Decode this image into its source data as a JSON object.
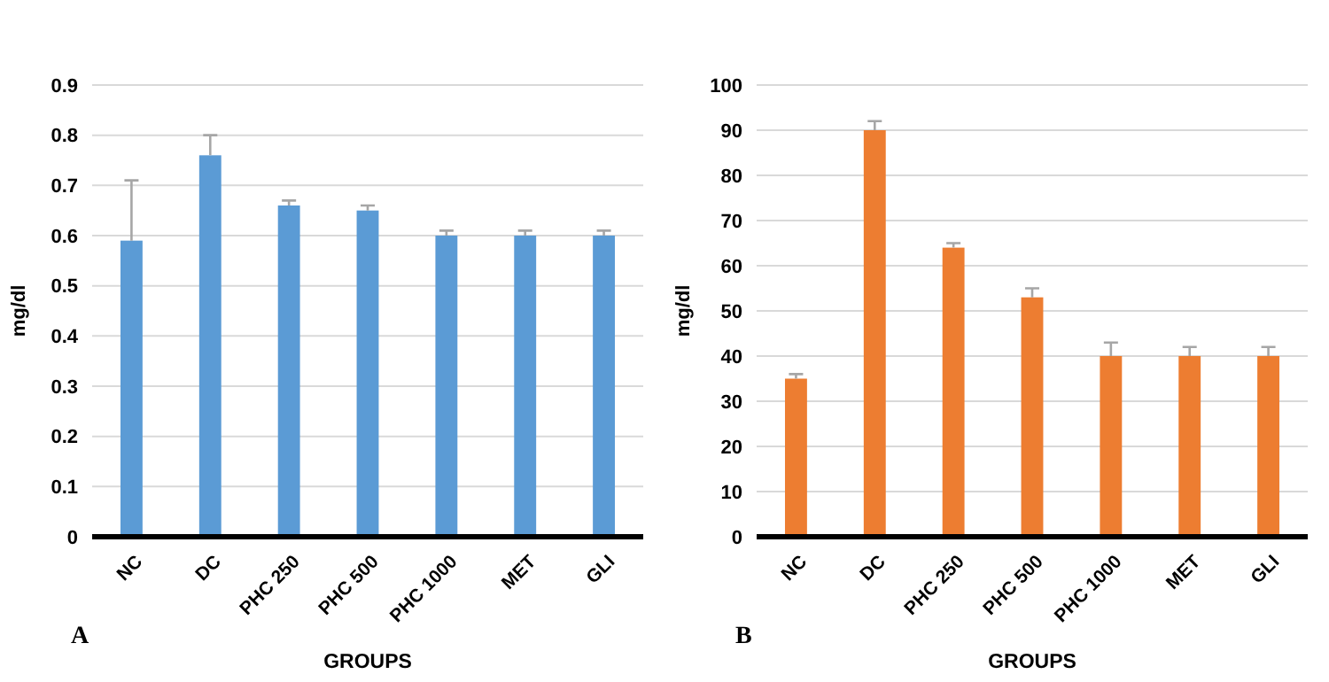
{
  "chart_data": [
    {
      "type": "bar",
      "xlabel": "GROUPS",
      "ylabel": "mg/dl",
      "annotations": [
        "A"
      ],
      "categories": [
        "NC",
        "DC",
        "PHC 250",
        "PHC 500",
        "PHC 1000",
        "MET",
        "GLI"
      ],
      "series": [
        {
          "color": "#5b9bd5",
          "values": [
            0.59,
            0.76,
            0.66,
            0.65,
            0.6,
            0.6,
            0.6
          ],
          "errors": [
            [
              0.59,
              0.71
            ],
            [
              0.76,
              0.8
            ],
            [
              0.66,
              0.67
            ],
            [
              0.65,
              0.66
            ],
            [
              0.6,
              0.61
            ],
            [
              0.6,
              0.61
            ],
            [
              0.6,
              0.61
            ]
          ]
        }
      ],
      "ylim": [
        0,
        0.9
      ],
      "yticks": [
        {
          "value": 0,
          "label": "0"
        },
        0.1,
        0.2,
        0.3,
        0.4,
        0.5,
        0.6,
        0.7,
        0.8,
        0.9
      ],
      "grid": "y"
    },
    {
      "type": "bar",
      "xlabel": "GROUPS",
      "ylabel": "mg/dl",
      "annotations": [
        "B"
      ],
      "categories": [
        "NC",
        "DC",
        "PHC 250",
        "PHC 500",
        "PHC 1000",
        "MET",
        "GLI"
      ],
      "series": [
        {
          "color": "#ed7d31",
          "values": [
            35,
            90,
            64,
            53,
            40,
            40,
            40
          ],
          "errors": [
            [
              35,
              36
            ],
            [
              90,
              92
            ],
            [
              64,
              65
            ],
            [
              53,
              55
            ],
            [
              40,
              43
            ],
            [
              40,
              42
            ],
            [
              40,
              42
            ]
          ]
        }
      ],
      "ylim": [
        0,
        100
      ],
      "yticks": [
        0,
        10,
        20,
        30,
        40,
        50,
        60,
        70,
        80,
        90,
        100
      ],
      "grid": "y"
    }
  ]
}
